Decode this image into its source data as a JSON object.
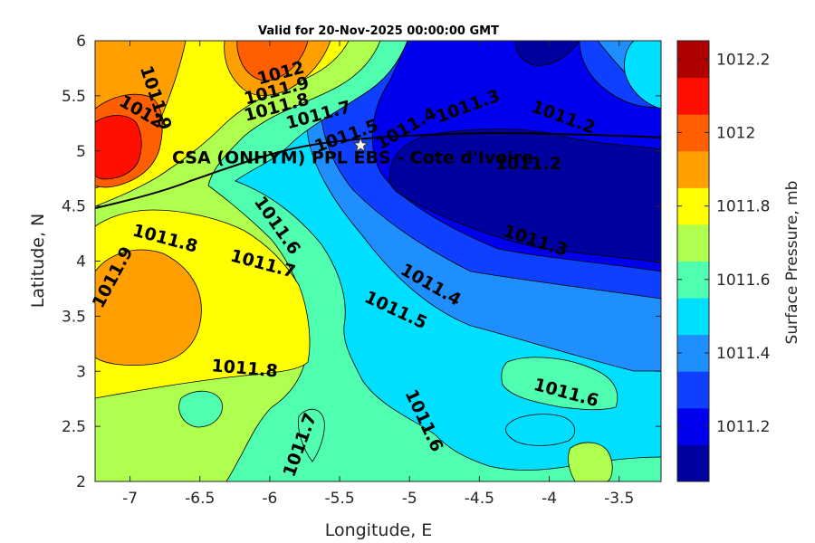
{
  "chart_data": {
    "type": "heatmap",
    "subtype": "filled-contour",
    "title": "Valid for 20-Nov-2025 00:00:00 GMT",
    "xlabel": "Longitude, E",
    "ylabel": "Latitude, N",
    "xlim": [
      -7.25,
      -3.2
    ],
    "ylim": [
      2,
      6
    ],
    "x_ticks": [
      -7,
      -6.5,
      -6,
      -5.5,
      -5,
      -4.5,
      -4,
      -3.5
    ],
    "x_tick_labels": [
      "-7",
      "-6.5",
      "-6",
      "-5.5",
      "-5",
      "-4.5",
      "-4",
      "-3.5"
    ],
    "y_ticks": [
      2,
      2.5,
      3,
      3.5,
      4,
      4.5,
      5,
      5.5,
      6
    ],
    "y_tick_labels": [
      "2",
      "2.5",
      "3",
      "3.5",
      "4",
      "4.5",
      "5",
      "5.5",
      "6"
    ],
    "colorbar": {
      "label": "Surface Pressure, mb",
      "levels": [
        1011.1,
        1011.2,
        1011.3,
        1011.4,
        1011.5,
        1011.6,
        1011.7,
        1011.8,
        1011.9,
        1012.0,
        1012.1,
        1012.2
      ],
      "colors": [
        "#00009f",
        "#0000ef",
        "#0f3fff",
        "#1f8fff",
        "#00dfff",
        "#4fffaf",
        "#afff4f",
        "#ffff00",
        "#ff9f00",
        "#ff5f00",
        "#ff0f00",
        "#af0000"
      ],
      "ticks": [
        1011.2,
        1011.4,
        1011.6,
        1011.8,
        1012,
        1012.2
      ],
      "tick_labels": [
        "1011.2",
        "1011.4",
        "1011.6",
        "1011.8",
        "1012",
        "1012.2"
      ]
    },
    "contour_labels": [
      {
        "text": "1012",
        "lon": -6.92,
        "lat": 5.35,
        "angle": 30
      },
      {
        "text": "1011.9",
        "lon": -6.82,
        "lat": 5.48,
        "angle": 72
      },
      {
        "text": "1012",
        "lon": -5.92,
        "lat": 5.7,
        "angle": -15
      },
      {
        "text": "1011.9",
        "lon": -5.95,
        "lat": 5.54,
        "angle": -15
      },
      {
        "text": "1011.8",
        "lon": -5.95,
        "lat": 5.39,
        "angle": -15
      },
      {
        "text": "1011.7",
        "lon": -5.65,
        "lat": 5.32,
        "angle": -15
      },
      {
        "text": "1011.5",
        "lon": -5.45,
        "lat": 5.13,
        "angle": -20
      },
      {
        "text": "1011.4",
        "lon": -5.02,
        "lat": 5.2,
        "angle": -30
      },
      {
        "text": "1011.3",
        "lon": -4.58,
        "lat": 5.4,
        "angle": -20
      },
      {
        "text": "1011.2",
        "lon": -3.9,
        "lat": 5.3,
        "angle": 20
      },
      {
        "text": "1011.2",
        "lon": -4.15,
        "lat": 4.88,
        "angle": 0
      },
      {
        "text": "1011.3",
        "lon": -4.1,
        "lat": 4.18,
        "angle": 18
      },
      {
        "text": "1011.4",
        "lon": -4.85,
        "lat": 3.78,
        "angle": 30
      },
      {
        "text": "1011.5",
        "lon": -5.1,
        "lat": 3.55,
        "angle": 25
      },
      {
        "text": "1011.6",
        "lon": -5.95,
        "lat": 4.32,
        "angle": 55
      },
      {
        "text": "1011.7",
        "lon": -6.05,
        "lat": 3.97,
        "angle": 15
      },
      {
        "text": "1011.8",
        "lon": -6.75,
        "lat": 4.2,
        "angle": 15
      },
      {
        "text": "1011.9",
        "lon": -7.12,
        "lat": 3.85,
        "angle": -62
      },
      {
        "text": "1011.8",
        "lon": -6.18,
        "lat": 3.02,
        "angle": 5
      },
      {
        "text": "1011.7",
        "lon": -5.78,
        "lat": 2.33,
        "angle": -70
      },
      {
        "text": "1011.6",
        "lon": -4.9,
        "lat": 2.55,
        "angle": 65
      },
      {
        "text": "1011.6",
        "lon": -3.88,
        "lat": 2.8,
        "angle": 15
      }
    ],
    "station": {
      "name": "CSA (ONHYM) PPL EBS  - Cote d'Ivoire",
      "lon": -5.35,
      "lat": 5.05
    },
    "grid": false
  }
}
